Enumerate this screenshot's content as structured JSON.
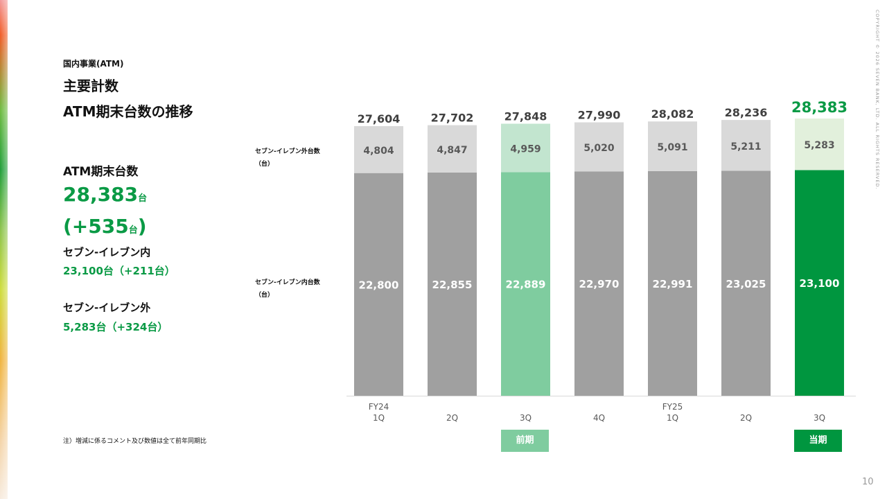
{
  "header": {
    "section_label": "国内事業(ATM)",
    "title_line1": "主要計数",
    "title_line2": "ATM期末台数の推移"
  },
  "summary": {
    "heading": "ATM期末台数",
    "total_value": "28,383",
    "unit": "台",
    "change_open": "(+535",
    "change_close": ")",
    "inside_heading": "セブン-イレブン内",
    "inside_value": "23,100台（+211台）",
    "outside_heading": "セブン-イレブン外",
    "outside_value": "5,283台（+324台）"
  },
  "note": "注）増減に係るコメント及び数値は全て前年同期比",
  "legend": {
    "outside_line1": "セブン-イレブン外台数",
    "outside_line2": "（台）",
    "inside_line1": "セブン-イレブン内台数",
    "inside_line2": "（台）"
  },
  "highlight_labels": {
    "previous": "前期",
    "current": "当期"
  },
  "colors": {
    "accent_green": "#0a9a45",
    "bar_inside_gray": "#a0a0a0",
    "bar_outside_gray": "#d9d9d9",
    "prev_inside": "#7fcc9f",
    "prev_outside": "#c2e5cf",
    "curr_inside": "#00963f",
    "curr_outside": "#e2f0dc"
  },
  "copyright": "COPYRIGHT © 2026 SEVEN BANK, LTD. ALL RIGHTS RESERVED.",
  "page_number": "10",
  "chart_data": {
    "type": "bar",
    "stacked": true,
    "categories": [
      [
        "FY24",
        "1Q"
      ],
      [
        "",
        "2Q"
      ],
      [
        "",
        "3Q"
      ],
      [
        "",
        "4Q"
      ],
      [
        "FY25",
        "1Q"
      ],
      [
        "",
        "2Q"
      ],
      [
        "",
        "3Q"
      ]
    ],
    "series": [
      {
        "name": "セブン-イレブン内台数（台）",
        "values": [
          22800,
          22855,
          22889,
          22970,
          22991,
          23025,
          23100
        ]
      },
      {
        "name": "セブン-イレブン外台数（台）",
        "values": [
          4804,
          4847,
          4959,
          5020,
          5091,
          5211,
          5283
        ]
      }
    ],
    "totals": [
      27604,
      27702,
      27848,
      27990,
      28082,
      28236,
      28383
    ],
    "highlight": {
      "previous_index": 2,
      "current_index": 6
    },
    "ylim": [
      0,
      28383
    ],
    "grid": false,
    "legend": "left"
  }
}
